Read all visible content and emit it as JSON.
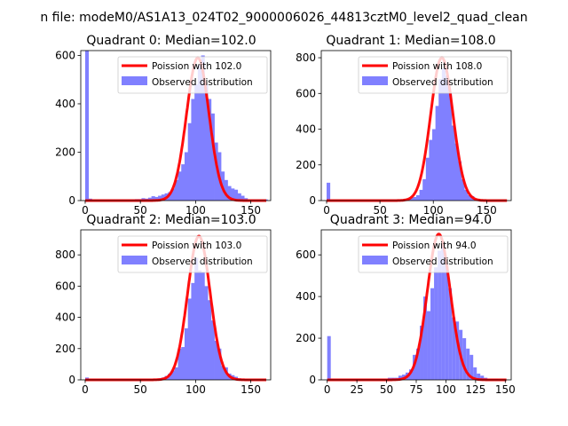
{
  "figure": {
    "suptitle": "n file: modeM0/AS1A13_024T02_9000006026_44813cztM0_level2_quad_clean"
  },
  "style": {
    "bar_color": "#8080ff",
    "line_color": "#ff0000",
    "axis_color": "#000000",
    "background": "#ffffff"
  },
  "chart_data": [
    {
      "type": "bar",
      "title": "Quadrant 0: Median=102.0",
      "xlim": [
        -4,
        168
      ],
      "ylim": [
        0,
        620
      ],
      "xticks": [
        0,
        50,
        100,
        150
      ],
      "yticks": [
        0,
        200,
        400,
        600
      ],
      "legend": {
        "position": "top-right",
        "line_label": "Poission with 102.0",
        "bar_label": "Observed distribution"
      },
      "median": 102,
      "peak": 590,
      "width": 10.2,
      "bin_width": 3.3,
      "bins": [
        {
          "x": 0,
          "y": 620
        },
        {
          "x": 3,
          "y": 8
        },
        {
          "x": 6,
          "y": 5
        },
        {
          "x": 9,
          "y": 5
        },
        {
          "x": 12,
          "y": 5
        },
        {
          "x": 15,
          "y": 5
        },
        {
          "x": 18,
          "y": 5
        },
        {
          "x": 21,
          "y": 5
        },
        {
          "x": 24,
          "y": 5
        },
        {
          "x": 27,
          "y": 5
        },
        {
          "x": 30,
          "y": 5
        },
        {
          "x": 33,
          "y": 5
        },
        {
          "x": 36,
          "y": 5
        },
        {
          "x": 39,
          "y": 5
        },
        {
          "x": 42,
          "y": 5
        },
        {
          "x": 45,
          "y": 6
        },
        {
          "x": 48,
          "y": 6
        },
        {
          "x": 51,
          "y": 10
        },
        {
          "x": 54,
          "y": 8
        },
        {
          "x": 57,
          "y": 12
        },
        {
          "x": 60,
          "y": 18
        },
        {
          "x": 63,
          "y": 15
        },
        {
          "x": 66,
          "y": 20
        },
        {
          "x": 69,
          "y": 25
        },
        {
          "x": 72,
          "y": 30
        },
        {
          "x": 75,
          "y": 35
        },
        {
          "x": 78,
          "y": 50
        },
        {
          "x": 81,
          "y": 85
        },
        {
          "x": 84,
          "y": 120
        },
        {
          "x": 87,
          "y": 150
        },
        {
          "x": 90,
          "y": 200
        },
        {
          "x": 93,
          "y": 320
        },
        {
          "x": 96,
          "y": 420
        },
        {
          "x": 99,
          "y": 480
        },
        {
          "x": 102,
          "y": 560
        },
        {
          "x": 105,
          "y": 600
        },
        {
          "x": 108,
          "y": 480
        },
        {
          "x": 111,
          "y": 420
        },
        {
          "x": 114,
          "y": 360
        },
        {
          "x": 117,
          "y": 240
        },
        {
          "x": 120,
          "y": 200
        },
        {
          "x": 123,
          "y": 120
        },
        {
          "x": 126,
          "y": 85
        },
        {
          "x": 129,
          "y": 60
        },
        {
          "x": 132,
          "y": 50
        },
        {
          "x": 135,
          "y": 45
        },
        {
          "x": 138,
          "y": 30
        },
        {
          "x": 141,
          "y": 20
        },
        {
          "x": 144,
          "y": 10
        },
        {
          "x": 147,
          "y": 5
        },
        {
          "x": 150,
          "y": 5
        },
        {
          "x": 153,
          "y": 5
        },
        {
          "x": 156,
          "y": 5
        },
        {
          "x": 159,
          "y": 5
        },
        {
          "x": 162,
          "y": 5
        }
      ]
    },
    {
      "type": "bar",
      "title": "Quadrant 1: Median=108.0",
      "xlim": [
        -5,
        173
      ],
      "ylim": [
        0,
        840
      ],
      "xticks": [
        0,
        50,
        100,
        150
      ],
      "yticks": [
        0,
        200,
        400,
        600,
        800
      ],
      "legend": {
        "position": "top-right",
        "line_label": "Poission with 108.0",
        "bar_label": "Observed distribution"
      },
      "median": 108,
      "peak": 800,
      "width": 10.4,
      "bin_width": 3.4,
      "bins": [
        {
          "x": 0,
          "y": 100
        },
        {
          "x": 3,
          "y": 3
        },
        {
          "x": 6,
          "y": 3
        },
        {
          "x": 9,
          "y": 3
        },
        {
          "x": 12,
          "y": 3
        },
        {
          "x": 15,
          "y": 3
        },
        {
          "x": 18,
          "y": 3
        },
        {
          "x": 21,
          "y": 3
        },
        {
          "x": 24,
          "y": 3
        },
        {
          "x": 27,
          "y": 3
        },
        {
          "x": 30,
          "y": 3
        },
        {
          "x": 33,
          "y": 3
        },
        {
          "x": 36,
          "y": 3
        },
        {
          "x": 39,
          "y": 3
        },
        {
          "x": 42,
          "y": 3
        },
        {
          "x": 45,
          "y": 3
        },
        {
          "x": 48,
          "y": 3
        },
        {
          "x": 51,
          "y": 5
        },
        {
          "x": 54,
          "y": 5
        },
        {
          "x": 57,
          "y": 5
        },
        {
          "x": 60,
          "y": 5
        },
        {
          "x": 63,
          "y": 5
        },
        {
          "x": 66,
          "y": 5
        },
        {
          "x": 69,
          "y": 5
        },
        {
          "x": 72,
          "y": 10
        },
        {
          "x": 75,
          "y": 10
        },
        {
          "x": 78,
          "y": 15
        },
        {
          "x": 81,
          "y": 20
        },
        {
          "x": 84,
          "y": 30
        },
        {
          "x": 87,
          "y": 60
        },
        {
          "x": 90,
          "y": 120
        },
        {
          "x": 93,
          "y": 240
        },
        {
          "x": 96,
          "y": 340
        },
        {
          "x": 99,
          "y": 400
        },
        {
          "x": 102,
          "y": 530
        },
        {
          "x": 105,
          "y": 680
        },
        {
          "x": 108,
          "y": 740
        },
        {
          "x": 111,
          "y": 700
        },
        {
          "x": 114,
          "y": 600
        },
        {
          "x": 117,
          "y": 420
        },
        {
          "x": 120,
          "y": 320
        },
        {
          "x": 123,
          "y": 220
        },
        {
          "x": 126,
          "y": 120
        },
        {
          "x": 129,
          "y": 60
        },
        {
          "x": 132,
          "y": 30
        },
        {
          "x": 135,
          "y": 25
        },
        {
          "x": 138,
          "y": 10
        },
        {
          "x": 141,
          "y": 5
        },
        {
          "x": 144,
          "y": 5
        }
      ]
    },
    {
      "type": "bar",
      "title": "Quadrant 2: Median=103.0",
      "xlim": [
        -4,
        168
      ],
      "ylim": [
        0,
        960
      ],
      "xticks": [
        0,
        50,
        100,
        150
      ],
      "yticks": [
        0,
        200,
        400,
        600,
        800
      ],
      "legend": {
        "position": "top-right",
        "line_label": "Poission with 103.0",
        "bar_label": "Observed distribution"
      },
      "median": 103,
      "peak": 920,
      "width": 10.2,
      "bin_width": 3.3,
      "bins": [
        {
          "x": 0,
          "y": 15
        },
        {
          "x": 3,
          "y": 5
        },
        {
          "x": 6,
          "y": 5
        },
        {
          "x": 9,
          "y": 5
        },
        {
          "x": 12,
          "y": 5
        },
        {
          "x": 15,
          "y": 5
        },
        {
          "x": 18,
          "y": 5
        },
        {
          "x": 21,
          "y": 5
        },
        {
          "x": 24,
          "y": 5
        },
        {
          "x": 27,
          "y": 5
        },
        {
          "x": 30,
          "y": 5
        },
        {
          "x": 33,
          "y": 5
        },
        {
          "x": 36,
          "y": 5
        },
        {
          "x": 39,
          "y": 5
        },
        {
          "x": 42,
          "y": 5
        },
        {
          "x": 45,
          "y": 5
        },
        {
          "x": 48,
          "y": 5
        },
        {
          "x": 51,
          "y": 5
        },
        {
          "x": 54,
          "y": 5
        },
        {
          "x": 57,
          "y": 5
        },
        {
          "x": 60,
          "y": 5
        },
        {
          "x": 63,
          "y": 5
        },
        {
          "x": 66,
          "y": 10
        },
        {
          "x": 69,
          "y": 15
        },
        {
          "x": 72,
          "y": 25
        },
        {
          "x": 75,
          "y": 40
        },
        {
          "x": 78,
          "y": 60
        },
        {
          "x": 81,
          "y": 80
        },
        {
          "x": 84,
          "y": 200
        },
        {
          "x": 87,
          "y": 210
        },
        {
          "x": 90,
          "y": 330
        },
        {
          "x": 93,
          "y": 520
        },
        {
          "x": 96,
          "y": 620
        },
        {
          "x": 99,
          "y": 780
        },
        {
          "x": 102,
          "y": 700
        },
        {
          "x": 105,
          "y": 690
        },
        {
          "x": 108,
          "y": 600
        },
        {
          "x": 111,
          "y": 510
        },
        {
          "x": 114,
          "y": 380
        },
        {
          "x": 117,
          "y": 250
        },
        {
          "x": 120,
          "y": 200
        },
        {
          "x": 123,
          "y": 90
        },
        {
          "x": 126,
          "y": 80
        },
        {
          "x": 129,
          "y": 40
        },
        {
          "x": 132,
          "y": 30
        },
        {
          "x": 135,
          "y": 20
        },
        {
          "x": 138,
          "y": 10
        },
        {
          "x": 141,
          "y": 5
        },
        {
          "x": 144,
          "y": 5
        }
      ]
    },
    {
      "type": "bar",
      "title": "Quadrant 3: Median=94.0",
      "xlim": [
        -5,
        155
      ],
      "ylim": [
        0,
        720
      ],
      "xticks": [
        0,
        25,
        50,
        75,
        100,
        125,
        150
      ],
      "yticks": [
        0,
        200,
        400,
        600
      ],
      "legend": {
        "position": "top-right",
        "line_label": "Poission with 94.0",
        "bar_label": "Observed distribution"
      },
      "median": 94,
      "peak": 700,
      "width": 9.7,
      "bin_width": 3.0,
      "bins": [
        {
          "x": 0,
          "y": 210
        },
        {
          "x": 3,
          "y": 5
        },
        {
          "x": 6,
          "y": 5
        },
        {
          "x": 9,
          "y": 5
        },
        {
          "x": 12,
          "y": 5
        },
        {
          "x": 15,
          "y": 5
        },
        {
          "x": 18,
          "y": 5
        },
        {
          "x": 21,
          "y": 5
        },
        {
          "x": 24,
          "y": 5
        },
        {
          "x": 27,
          "y": 5
        },
        {
          "x": 30,
          "y": 5
        },
        {
          "x": 33,
          "y": 5
        },
        {
          "x": 36,
          "y": 5
        },
        {
          "x": 39,
          "y": 5
        },
        {
          "x": 42,
          "y": 5
        },
        {
          "x": 45,
          "y": 5
        },
        {
          "x": 48,
          "y": 5
        },
        {
          "x": 51,
          "y": 10
        },
        {
          "x": 54,
          "y": 10
        },
        {
          "x": 57,
          "y": 10
        },
        {
          "x": 60,
          "y": 20
        },
        {
          "x": 63,
          "y": 25
        },
        {
          "x": 66,
          "y": 35
        },
        {
          "x": 69,
          "y": 50
        },
        {
          "x": 72,
          "y": 120
        },
        {
          "x": 75,
          "y": 150
        },
        {
          "x": 78,
          "y": 260
        },
        {
          "x": 81,
          "y": 400
        },
        {
          "x": 84,
          "y": 330
        },
        {
          "x": 87,
          "y": 440
        },
        {
          "x": 90,
          "y": 540
        },
        {
          "x": 93,
          "y": 620
        },
        {
          "x": 96,
          "y": 650
        },
        {
          "x": 99,
          "y": 560
        },
        {
          "x": 102,
          "y": 440
        },
        {
          "x": 105,
          "y": 300
        },
        {
          "x": 108,
          "y": 280
        },
        {
          "x": 111,
          "y": 240
        },
        {
          "x": 114,
          "y": 200
        },
        {
          "x": 117,
          "y": 150
        },
        {
          "x": 120,
          "y": 120
        },
        {
          "x": 123,
          "y": 60
        },
        {
          "x": 126,
          "y": 30
        },
        {
          "x": 129,
          "y": 20
        },
        {
          "x": 132,
          "y": 10
        },
        {
          "x": 135,
          "y": 5
        },
        {
          "x": 138,
          "y": 5
        },
        {
          "x": 141,
          "y": 5
        }
      ]
    }
  ]
}
